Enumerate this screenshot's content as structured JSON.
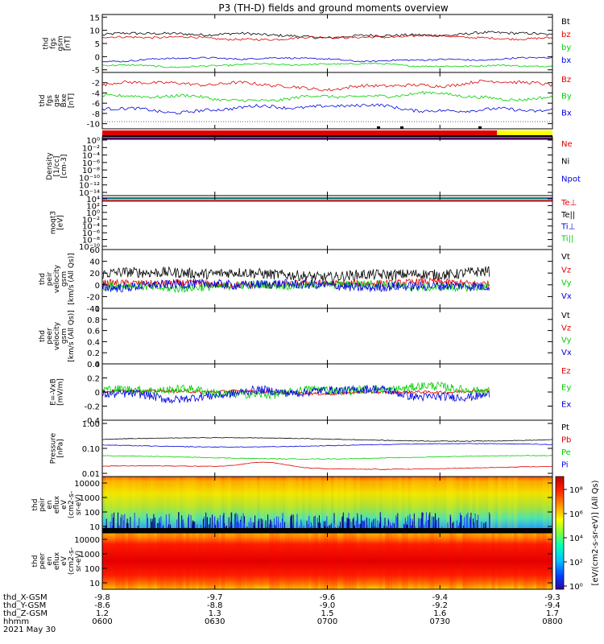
{
  "title": "P3 (TH-D) fields and ground moments overview",
  "colors": {
    "black": "#000000",
    "red": "#e00000",
    "green": "#00d000",
    "blue": "#0000e0",
    "yellow": "#ffff00"
  },
  "chart_data": [
    {
      "id": "fgs_gsm",
      "type": "line",
      "ylabel_lines": [
        "thd",
        "fgs",
        "gsm",
        "[nT]"
      ],
      "ylim": [
        -6,
        16
      ],
      "ticks": [
        15,
        10,
        5,
        0,
        -5
      ],
      "series": [
        {
          "name": "Bt",
          "color": "#000000",
          "base": 8.2,
          "amp": 1.2,
          "noise": 0.5
        },
        {
          "name": "bz",
          "color": "#e00000",
          "base": 7.2,
          "amp": 1.0,
          "noise": 0.4
        },
        {
          "name": "by",
          "color": "#00d000",
          "base": -3.2,
          "amp": 0.9,
          "noise": 0.3
        },
        {
          "name": "bx",
          "color": "#0000e0",
          "base": -1.0,
          "amp": 1.0,
          "noise": 0.3
        }
      ]
    },
    {
      "id": "fgs_gse",
      "type": "line",
      "ylabel_lines": [
        "thd",
        "fgs",
        "gse",
        "Bxe",
        "[nT]"
      ],
      "ylim": [
        -11,
        0
      ],
      "ticks": [
        -2,
        -4,
        -6,
        -8,
        -10
      ],
      "series": [
        {
          "name": "Bz",
          "color": "#e00000",
          "base": -2.5,
          "amp": 1.0,
          "noise": 0.3
        },
        {
          "name": "By",
          "color": "#00d000",
          "base": -4.8,
          "amp": 1.0,
          "noise": 0.3
        },
        {
          "name": "Bx",
          "color": "#0000e0",
          "base": -7.0,
          "amp": 1.0,
          "noise": 0.3
        }
      ]
    },
    {
      "id": "density",
      "type": "line",
      "ylabel_lines": [
        "Density",
        "[1/cc]",
        "[cm-3]"
      ],
      "log": true,
      "ylim": [
        1e-14,
        1
      ],
      "ticks": [
        "10⁰",
        "10⁻²",
        "10⁻⁴",
        "10⁻⁶",
        "10⁻⁸",
        "10⁻¹⁰",
        "10⁻¹²",
        "10⁻¹⁴"
      ],
      "series": [
        {
          "name": "Ne",
          "color": "#e00000"
        },
        {
          "name": "Ni",
          "color": "#000000"
        },
        {
          "name": "Npot",
          "color": "#0000e0"
        }
      ]
    },
    {
      "id": "temperature",
      "type": "line",
      "ylabel_lines": [
        "moqt3",
        "[eV]"
      ],
      "log": true,
      "ylim": [
        1e-10,
        10000.0
      ],
      "ticks": [
        "10⁴",
        "10²",
        "10⁰",
        "10⁻²",
        "10⁻⁴",
        "10⁻⁶",
        "10⁻⁸",
        "10⁻¹⁰"
      ],
      "series": [
        {
          "name": "Te⊥",
          "color": "#e00000"
        },
        {
          "name": "Te||",
          "color": "#000000"
        },
        {
          "name": "Ti⊥",
          "color": "#0000e0"
        },
        {
          "name": "Ti||",
          "color": "#00d000"
        }
      ]
    },
    {
      "id": "peir_velocity",
      "type": "line",
      "ylabel_lines": [
        "thd",
        "peir",
        "velocity",
        "gsm",
        "[km/s (All Qs)]"
      ],
      "ylim": [
        -40,
        60
      ],
      "ticks": [
        60,
        40,
        20,
        0,
        -20,
        -40
      ],
      "series": [
        {
          "name": "Vt",
          "color": "#000000",
          "base": 18,
          "amp": 6,
          "noise": 9
        },
        {
          "name": "Vz",
          "color": "#e00000",
          "base": 2,
          "amp": 4,
          "noise": 6
        },
        {
          "name": "Vy",
          "color": "#00d000",
          "base": -2,
          "amp": 5,
          "noise": 7
        },
        {
          "name": "Vx",
          "color": "#0000e0",
          "base": -1,
          "amp": 5,
          "noise": 8
        }
      ]
    },
    {
      "id": "peer_velocity",
      "type": "line",
      "ylabel_lines": [
        "thd",
        "peer",
        "velocity",
        "gsm",
        "[km/s (All Qs)]"
      ],
      "ylim": [
        0,
        1
      ],
      "ticks": [
        1.0,
        0.8,
        0.6,
        0.4,
        0.2,
        0.0
      ],
      "series": [
        {
          "name": "Vt",
          "color": "#000000"
        },
        {
          "name": "Vz",
          "color": "#e00000"
        },
        {
          "name": "Vy",
          "color": "#00d000"
        },
        {
          "name": "Vx",
          "color": "#0000e0"
        }
      ]
    },
    {
      "id": "efield",
      "type": "line",
      "ylabel_lines": [
        "E=-VxB",
        "[mV/m]"
      ],
      "ylim": [
        -0.4,
        0.4
      ],
      "ticks": [
        0.4,
        0.2,
        0.0,
        -0.2,
        -0.4
      ],
      "series": [
        {
          "name": "Ez",
          "color": "#e00000",
          "base": 0.0,
          "amp": 0.03,
          "noise": 0.02
        },
        {
          "name": "Ey",
          "color": "#00d000",
          "base": 0.02,
          "amp": 0.08,
          "noise": 0.06
        },
        {
          "name": "Ex",
          "color": "#0000e0",
          "base": -0.02,
          "amp": 0.1,
          "noise": 0.06
        }
      ]
    },
    {
      "id": "pressure",
      "type": "line",
      "ylabel_lines": [
        "Pressure",
        "[nPa]"
      ],
      "log": true,
      "ylim": [
        0.008,
        1.2
      ],
      "ticks": [
        "1.00",
        "0.10",
        "0.01"
      ],
      "series": [
        {
          "name": "Pt",
          "color": "#000000",
          "base": 0.22
        },
        {
          "name": "Pb",
          "color": "#e00000",
          "base": 0.018
        },
        {
          "name": "Pe",
          "color": "#00d000",
          "base": 0.045
        },
        {
          "name": "Pi",
          "color": "#0000e0",
          "base": 0.13
        }
      ]
    },
    {
      "id": "peir_spec",
      "type": "heatmap",
      "ylabel_lines": [
        "thd",
        "peir",
        "en",
        "eflux",
        "eV",
        "(cm2-s-",
        "sr-eV)"
      ],
      "ticks": [
        "10000",
        "1000",
        "100",
        "10"
      ]
    },
    {
      "id": "peer_spec",
      "type": "heatmap",
      "ylabel_lines": [
        "thd",
        "peer",
        "en",
        "eflux",
        "eV",
        "(cm2-s-",
        "sr-eV)"
      ],
      "ticks": [
        "10000",
        "1000",
        "100",
        "10"
      ]
    }
  ],
  "colorbar": {
    "label": "[eV/(cm2-s-sr-eV)] (All Qs)",
    "ticks": [
      "10⁸",
      "10⁶",
      "10⁴",
      "10²",
      "10⁰"
    ]
  },
  "xaxis": {
    "row_labels": [
      "thd_X-GSM",
      "thd_Y-GSM",
      "thd_Z-GSM",
      "hhmm"
    ],
    "date": "2021 May 30",
    "columns": [
      {
        "vals": [
          "-9.8",
          "-8.6",
          "1.2",
          "0600"
        ]
      },
      {
        "vals": [
          "-9.7",
          "-8.8",
          "1.3",
          "0630"
        ]
      },
      {
        "vals": [
          "-9.6",
          "-9.0",
          "1.5",
          "0700"
        ]
      },
      {
        "vals": [
          "-9.4",
          "-9.2",
          "1.6",
          "0730"
        ]
      },
      {
        "vals": [
          "-9.3",
          "-9.4",
          "1.7",
          "0800"
        ]
      }
    ]
  }
}
